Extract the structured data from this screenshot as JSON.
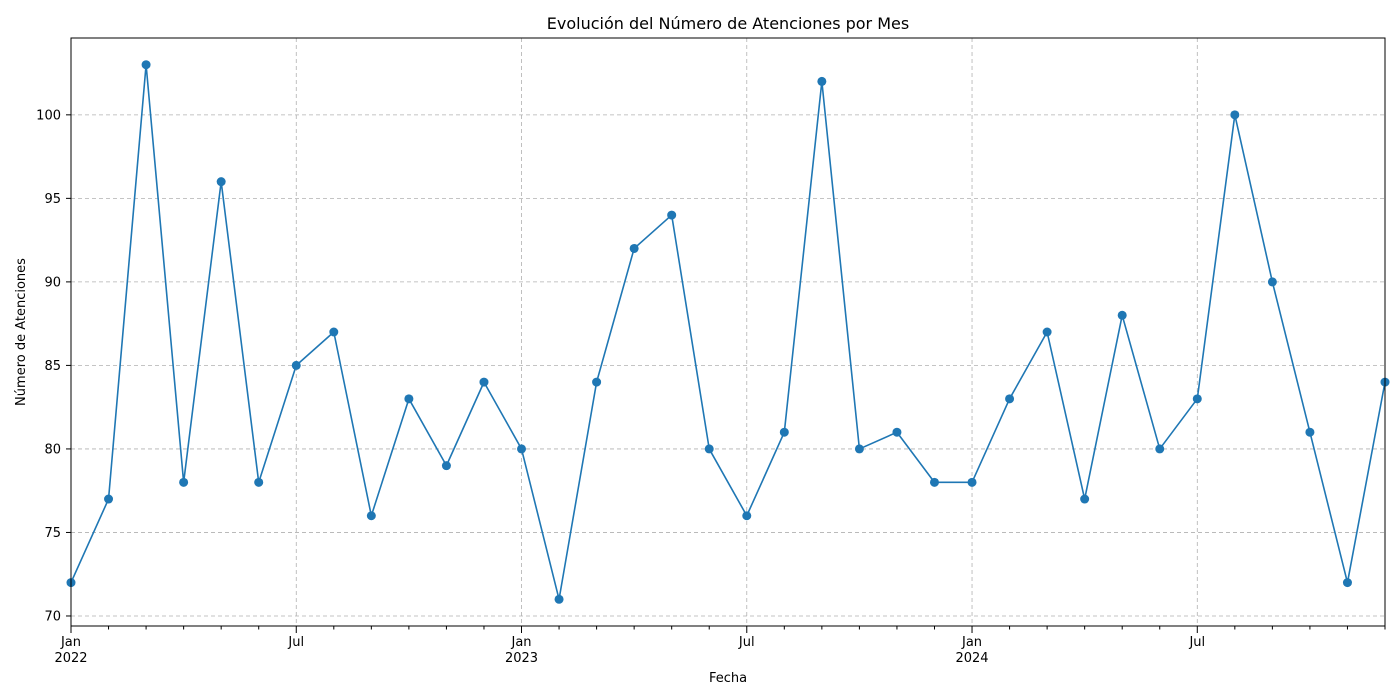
{
  "chart_data": {
    "type": "line",
    "title": "Evolución del Número de Atenciones por Mes",
    "xlabel": "Fecha",
    "ylabel": "Número de Atenciones",
    "x_start": "2022-01",
    "x_end": "2024-12",
    "ylim": [
      69.4,
      104.6
    ],
    "yticks": [
      70,
      75,
      80,
      85,
      90,
      95,
      100
    ],
    "grid": true,
    "line_color": "#1f77b4",
    "marker": "circle",
    "xtick_labels": [
      {
        "date": "2022-01",
        "label": "Jan",
        "year_label": "2022"
      },
      {
        "date": "2022-07",
        "label": "Jul",
        "year_label": ""
      },
      {
        "date": "2023-01",
        "label": "Jan",
        "year_label": "2023"
      },
      {
        "date": "2023-07",
        "label": "Jul",
        "year_label": ""
      },
      {
        "date": "2024-01",
        "label": "Jan",
        "year_label": "2024"
      },
      {
        "date": "2024-07",
        "label": "Jul",
        "year_label": ""
      }
    ],
    "series": [
      {
        "x": [
          "2022-01",
          "2022-02",
          "2022-03",
          "2022-04",
          "2022-05",
          "2022-06",
          "2022-07",
          "2022-08",
          "2022-09",
          "2022-10",
          "2022-11",
          "2022-12",
          "2023-01",
          "2023-02",
          "2023-03",
          "2023-04",
          "2023-05",
          "2023-06",
          "2023-07",
          "2023-08",
          "2023-09",
          "2023-10",
          "2023-11",
          "2023-12",
          "2024-01",
          "2024-02",
          "2024-03",
          "2024-04",
          "2024-05",
          "2024-06",
          "2024-07",
          "2024-08",
          "2024-09",
          "2024-10",
          "2024-11",
          "2024-12"
        ],
        "values": [
          72,
          77,
          103,
          78,
          96,
          78,
          85,
          87,
          76,
          83,
          79,
          84,
          80,
          71,
          84,
          92,
          94,
          80,
          76,
          81,
          102,
          80,
          81,
          78,
          78,
          83,
          87,
          77,
          88,
          80,
          83,
          100,
          90,
          81,
          72,
          84
        ]
      }
    ]
  }
}
